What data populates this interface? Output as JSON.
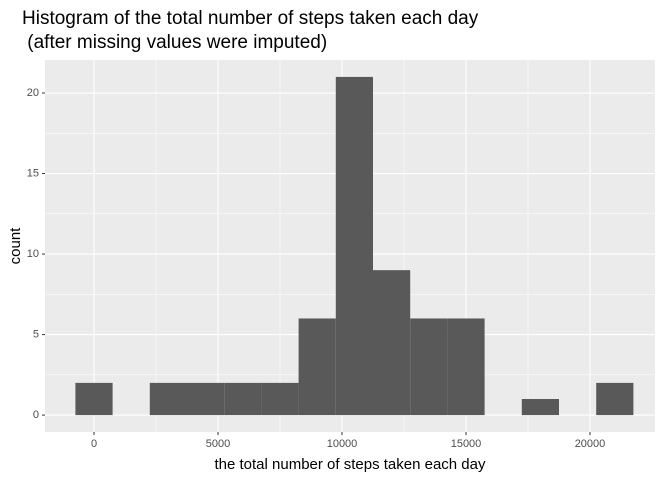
{
  "chart_data": {
    "type": "histogram",
    "title": [
      "Histogram of the total number of steps taken each day",
      " (after missing values were imputed)"
    ],
    "x_label": "the total number of steps taken each day",
    "y_label": "count",
    "bins": [
      -750,
      750,
      2250,
      3750,
      5250,
      6750,
      8250,
      9750,
      11250,
      12750,
      14250,
      15750,
      17250,
      18750,
      20250,
      21750
    ],
    "values": [
      2,
      0,
      2,
      2,
      2,
      2,
      6,
      21,
      9,
      6,
      6,
      0,
      1,
      0,
      2
    ],
    "color": "#595959",
    "xlim": [
      -1976,
      22621
    ],
    "ylim": [
      -1.05,
      22.05
    ],
    "xticks": [
      0,
      5000,
      10000,
      15000,
      20000
    ],
    "yticks": [
      0,
      5,
      10,
      15,
      20
    ],
    "grid": true
  }
}
